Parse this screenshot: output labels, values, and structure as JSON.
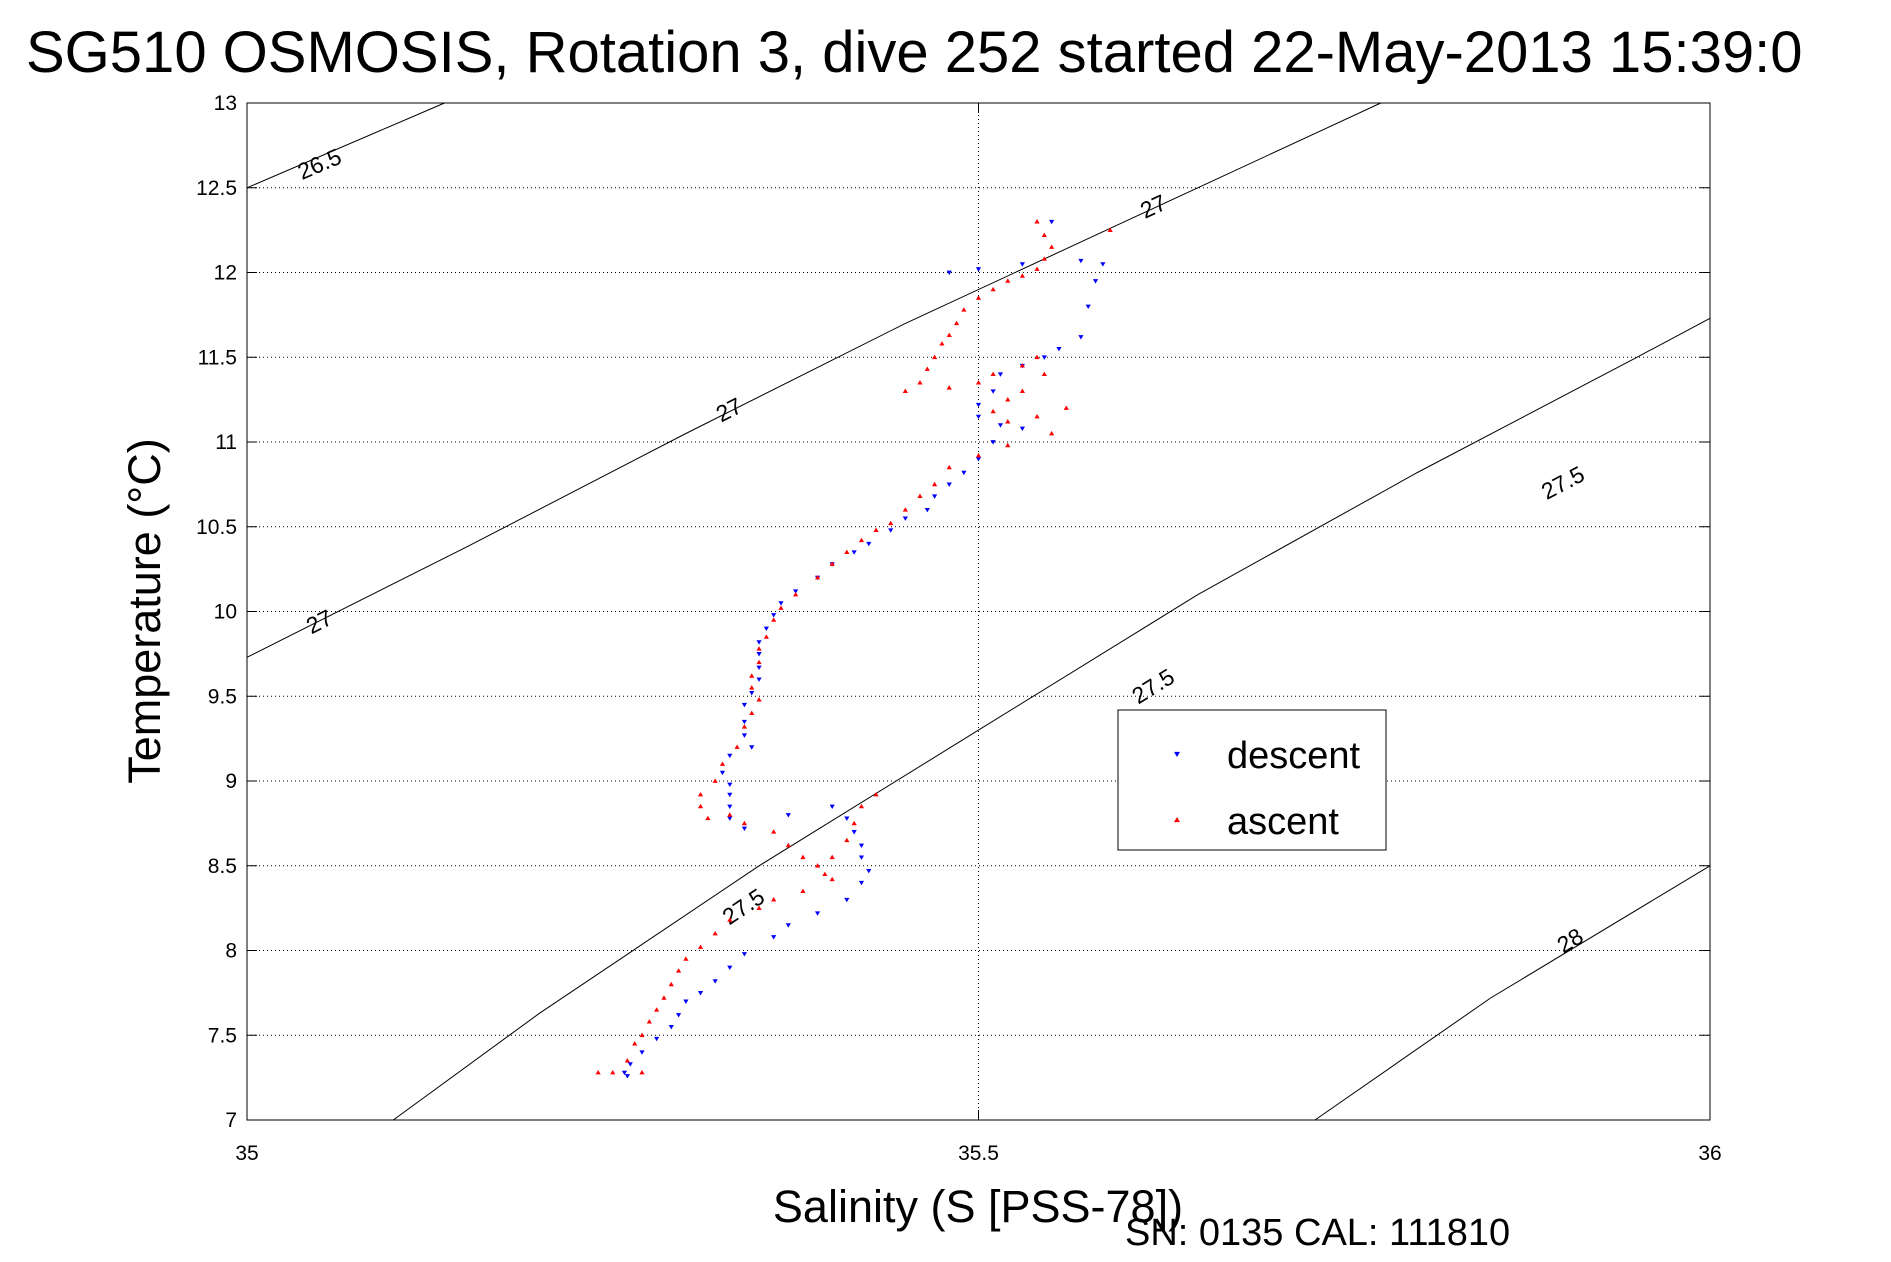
{
  "chart_data": {
    "type": "scatter",
    "title": "SG510 OSMOSIS, Rotation 3, dive 252 started 22-May-2013 15:39:0",
    "xlabel": "Salinity (S [PSS-78])",
    "ylabel": "Temperature (°C)",
    "xlim": [
      35,
      36
    ],
    "ylim": [
      7,
      13
    ],
    "x_ticks": [
      "35",
      "35.5",
      "36"
    ],
    "y_ticks": [
      "7",
      "7.5",
      "8",
      "8.5",
      "9",
      "9.5",
      "10",
      "10.5",
      "11",
      "11.5",
      "12",
      "12.5",
      "13"
    ],
    "grid": true,
    "legend_position": "center-right",
    "footer": "SN: 0135  CAL: 111810",
    "colors": {
      "descent": "#0000ff",
      "ascent": "#ff0000"
    },
    "contours": [
      {
        "label": "26.5",
        "points": [
          [
            35.0,
            12.5
          ],
          [
            35.135,
            13.0
          ]
        ],
        "label_positions": [
          [
            35.05,
            12.63
          ]
        ]
      },
      {
        "label": "27",
        "points": [
          [
            35.0,
            9.73
          ],
          [
            35.15,
            10.38
          ],
          [
            35.3,
            11.05
          ],
          [
            35.45,
            11.7
          ],
          [
            35.6,
            12.3
          ],
          [
            35.775,
            13.0
          ]
        ],
        "label_positions": [
          [
            35.05,
            9.93
          ],
          [
            35.33,
            11.18
          ],
          [
            35.62,
            12.38
          ]
        ]
      },
      {
        "label": "27.5",
        "points": [
          [
            35.1,
            7.0
          ],
          [
            35.2,
            7.63
          ],
          [
            35.35,
            8.5
          ],
          [
            35.5,
            9.3
          ],
          [
            35.65,
            10.1
          ],
          [
            35.8,
            10.82
          ],
          [
            35.95,
            11.5
          ],
          [
            36.0,
            11.73
          ]
        ],
        "label_positions": [
          [
            35.34,
            8.25
          ],
          [
            35.62,
            9.55
          ],
          [
            35.9,
            10.75
          ]
        ]
      },
      {
        "label": "28",
        "points": [
          [
            35.73,
            7.0
          ],
          [
            35.85,
            7.72
          ],
          [
            36.0,
            8.5
          ]
        ],
        "label_positions": [
          [
            35.905,
            8.05
          ]
        ]
      }
    ],
    "series": [
      {
        "name": "descent",
        "marker": "triangle-down",
        "points": [
          [
            35.48,
            12.0
          ],
          [
            35.5,
            12.02
          ],
          [
            35.53,
            12.05
          ],
          [
            35.57,
            12.07
          ],
          [
            35.585,
            12.05
          ],
          [
            35.58,
            11.95
          ],
          [
            35.575,
            11.8
          ],
          [
            35.57,
            11.62
          ],
          [
            35.555,
            11.55
          ],
          [
            35.545,
            11.5
          ],
          [
            35.53,
            11.45
          ],
          [
            35.515,
            11.4
          ],
          [
            35.51,
            11.3
          ],
          [
            35.5,
            11.22
          ],
          [
            35.5,
            11.15
          ],
          [
            35.515,
            11.1
          ],
          [
            35.53,
            11.08
          ],
          [
            35.51,
            11.0
          ],
          [
            35.5,
            10.9
          ],
          [
            35.49,
            10.82
          ],
          [
            35.48,
            10.75
          ],
          [
            35.47,
            10.68
          ],
          [
            35.465,
            10.6
          ],
          [
            35.45,
            10.55
          ],
          [
            35.44,
            10.48
          ],
          [
            35.425,
            10.4
          ],
          [
            35.415,
            10.35
          ],
          [
            35.4,
            10.28
          ],
          [
            35.39,
            10.2
          ],
          [
            35.375,
            10.12
          ],
          [
            35.365,
            10.05
          ],
          [
            35.36,
            9.98
          ],
          [
            35.355,
            9.9
          ],
          [
            35.35,
            9.82
          ],
          [
            35.35,
            9.75
          ],
          [
            35.35,
            9.67
          ],
          [
            35.35,
            9.6
          ],
          [
            35.345,
            9.52
          ],
          [
            35.34,
            9.45
          ],
          [
            35.34,
            9.35
          ],
          [
            35.34,
            9.27
          ],
          [
            35.345,
            9.2
          ],
          [
            35.33,
            9.15
          ],
          [
            35.325,
            9.05
          ],
          [
            35.33,
            8.98
          ],
          [
            35.33,
            8.92
          ],
          [
            35.33,
            8.85
          ],
          [
            35.33,
            8.78
          ],
          [
            35.34,
            8.72
          ],
          [
            35.37,
            8.8
          ],
          [
            35.4,
            8.85
          ],
          [
            35.41,
            8.78
          ],
          [
            35.415,
            8.7
          ],
          [
            35.42,
            8.62
          ],
          [
            35.42,
            8.55
          ],
          [
            35.425,
            8.47
          ],
          [
            35.42,
            8.4
          ],
          [
            35.41,
            8.3
          ],
          [
            35.39,
            8.22
          ],
          [
            35.37,
            8.15
          ],
          [
            35.36,
            8.08
          ],
          [
            35.34,
            7.98
          ],
          [
            35.33,
            7.9
          ],
          [
            35.32,
            7.82
          ],
          [
            35.31,
            7.75
          ],
          [
            35.3,
            7.7
          ],
          [
            35.295,
            7.62
          ],
          [
            35.29,
            7.55
          ],
          [
            35.28,
            7.48
          ],
          [
            35.27,
            7.4
          ],
          [
            35.262,
            7.33
          ],
          [
            35.258,
            7.28
          ],
          [
            35.26,
            7.26
          ],
          [
            35.55,
            12.3
          ]
        ]
      },
      {
        "name": "ascent",
        "marker": "triangle-up",
        "points": [
          [
            35.54,
            12.3
          ],
          [
            35.545,
            12.22
          ],
          [
            35.55,
            12.15
          ],
          [
            35.545,
            12.08
          ],
          [
            35.54,
            12.02
          ],
          [
            35.53,
            11.98
          ],
          [
            35.52,
            11.95
          ],
          [
            35.51,
            11.9
          ],
          [
            35.5,
            11.85
          ],
          [
            35.49,
            11.78
          ],
          [
            35.485,
            11.7
          ],
          [
            35.48,
            11.63
          ],
          [
            35.475,
            11.58
          ],
          [
            35.47,
            11.5
          ],
          [
            35.465,
            11.43
          ],
          [
            35.46,
            11.35
          ],
          [
            35.45,
            11.3
          ],
          [
            35.48,
            11.32
          ],
          [
            35.5,
            11.35
          ],
          [
            35.51,
            11.4
          ],
          [
            35.53,
            11.45
          ],
          [
            35.54,
            11.5
          ],
          [
            35.545,
            11.4
          ],
          [
            35.53,
            11.3
          ],
          [
            35.52,
            11.25
          ],
          [
            35.51,
            11.18
          ],
          [
            35.52,
            11.12
          ],
          [
            35.54,
            11.15
          ],
          [
            35.56,
            11.2
          ],
          [
            35.55,
            11.05
          ],
          [
            35.52,
            10.98
          ],
          [
            35.5,
            10.92
          ],
          [
            35.48,
            10.85
          ],
          [
            35.47,
            10.75
          ],
          [
            35.46,
            10.68
          ],
          [
            35.45,
            10.6
          ],
          [
            35.44,
            10.52
          ],
          [
            35.43,
            10.48
          ],
          [
            35.42,
            10.42
          ],
          [
            35.41,
            10.35
          ],
          [
            35.4,
            10.28
          ],
          [
            35.39,
            10.2
          ],
          [
            35.375,
            10.1
          ],
          [
            35.365,
            10.02
          ],
          [
            35.36,
            9.95
          ],
          [
            35.355,
            9.85
          ],
          [
            35.35,
            9.78
          ],
          [
            35.35,
            9.7
          ],
          [
            35.345,
            9.62
          ],
          [
            35.345,
            9.55
          ],
          [
            35.35,
            9.48
          ],
          [
            35.345,
            9.4
          ],
          [
            35.34,
            9.32
          ],
          [
            35.335,
            9.2
          ],
          [
            35.325,
            9.1
          ],
          [
            35.32,
            9.0
          ],
          [
            35.31,
            8.92
          ],
          [
            35.31,
            8.85
          ],
          [
            35.315,
            8.78
          ],
          [
            35.33,
            8.8
          ],
          [
            35.34,
            8.75
          ],
          [
            35.36,
            8.7
          ],
          [
            35.37,
            8.62
          ],
          [
            35.38,
            8.55
          ],
          [
            35.39,
            8.5
          ],
          [
            35.395,
            8.45
          ],
          [
            35.4,
            8.55
          ],
          [
            35.41,
            8.65
          ],
          [
            35.415,
            8.75
          ],
          [
            35.42,
            8.85
          ],
          [
            35.43,
            8.92
          ],
          [
            35.4,
            8.42
          ],
          [
            35.38,
            8.35
          ],
          [
            35.36,
            8.3
          ],
          [
            35.35,
            8.25
          ],
          [
            35.33,
            8.18
          ],
          [
            35.32,
            8.1
          ],
          [
            35.31,
            8.02
          ],
          [
            35.3,
            7.95
          ],
          [
            35.295,
            7.88
          ],
          [
            35.29,
            7.8
          ],
          [
            35.285,
            7.72
          ],
          [
            35.28,
            7.65
          ],
          [
            35.275,
            7.58
          ],
          [
            35.27,
            7.5
          ],
          [
            35.265,
            7.45
          ],
          [
            35.26,
            7.35
          ],
          [
            35.25,
            7.28
          ],
          [
            35.24,
            7.28
          ],
          [
            35.27,
            7.28
          ],
          [
            35.59,
            12.25
          ]
        ]
      }
    ]
  }
}
